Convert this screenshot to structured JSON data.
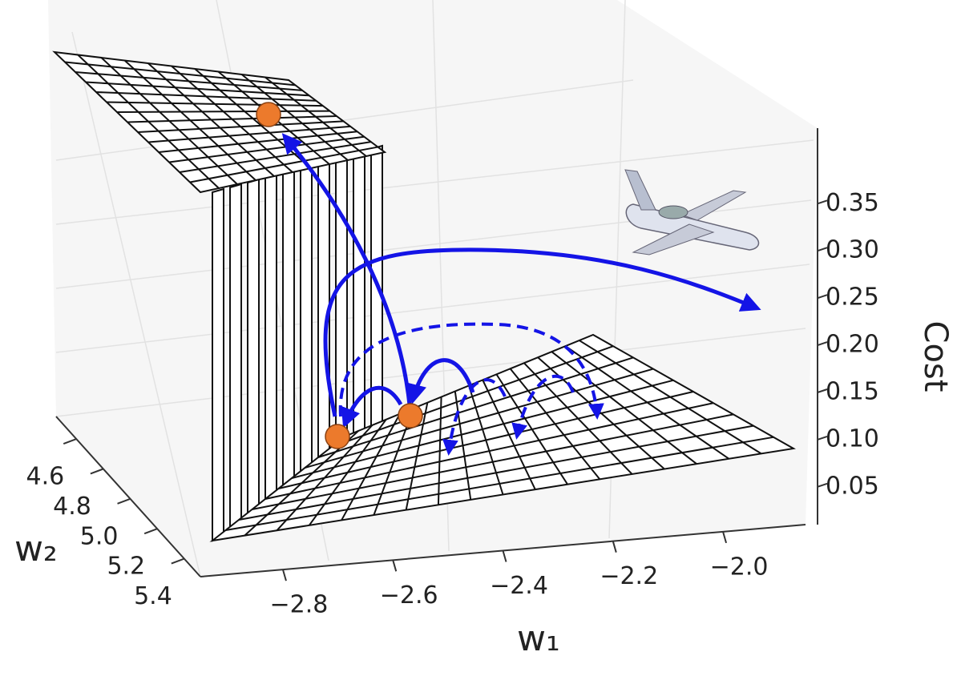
{
  "chart_data": {
    "type": "surface3d",
    "xlabel": "w₁",
    "ylabel": "w₂",
    "zlabel": "Cost",
    "xlim": [
      -2.95,
      -1.85
    ],
    "xticks": [
      {
        "value": -2.8,
        "label": "−2.8"
      },
      {
        "value": -2.6,
        "label": "−2.6"
      },
      {
        "value": -2.4,
        "label": "−2.4"
      },
      {
        "value": -2.2,
        "label": "−2.2"
      },
      {
        "value": -2.0,
        "label": "−2.0"
      }
    ],
    "ylim": [
      4.45,
      5.52
    ],
    "yticks": [
      4.6,
      4.8,
      {
        "value": 5.0,
        "label": "5.0"
      },
      5.2,
      5.4
    ],
    "zlim": [
      0.01,
      0.43
    ],
    "zticks": [
      0.05,
      {
        "value": 0.1,
        "label": "0.10"
      },
      0.15,
      {
        "value": 0.2,
        "label": "0.20"
      },
      0.25,
      {
        "value": 0.3,
        "label": "0.30"
      },
      0.35
    ],
    "grid": true
  }
}
